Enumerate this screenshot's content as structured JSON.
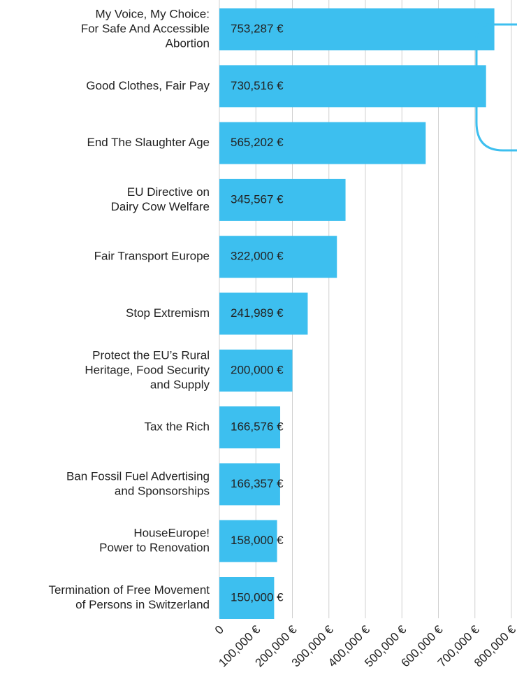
{
  "chart_data": {
    "type": "bar",
    "orientation": "horizontal",
    "color": "#3dbfef",
    "grid": true,
    "categories": [
      [
        "My Voice, My Choice:",
        "For Safe And Accessible",
        "Abortion"
      ],
      [
        "Good Clothes, Fair Pay"
      ],
      [
        "End The Slaughter Age"
      ],
      [
        "EU Directive on",
        "Dairy Cow Welfare"
      ],
      [
        "Fair Transport Europe"
      ],
      [
        "Stop Extremism"
      ],
      [
        "Protect the EU’s Rural",
        "Heritage, Food Security",
        "and Supply"
      ],
      [
        "Tax the Rich"
      ],
      [
        "Ban Fossil Fuel Advertising",
        "and Sponsorships"
      ],
      [
        "HouseEurope!",
        "Power to Renovation"
      ],
      [
        "Termination of Free Movement",
        "of Persons in Switzerland"
      ]
    ],
    "values": [
      753287,
      730516,
      565202,
      345567,
      322000,
      241989,
      200000,
      166576,
      166357,
      158000,
      150000
    ],
    "value_labels": [
      "753,287 €",
      "730,516 €",
      "565,202 €",
      "345,567 €",
      "322,000 €",
      "241,989 €",
      "200,000 €",
      "166,576 €",
      "166,357 €",
      "158,000 €",
      "150,000 €"
    ],
    "xlim": [
      0,
      800000
    ],
    "xticks": [
      0,
      {
        "value": 100000,
        "label": "100,000 €"
      },
      {
        "value": 200000,
        "label": "200,000 €"
      },
      {
        "value": 300000,
        "label": "300,000 €"
      },
      {
        "value": 400000,
        "label": "400,000 €"
      },
      {
        "value": 500000,
        "label": "500,000 €"
      },
      {
        "value": 600000,
        "label": "600,000 €"
      },
      {
        "value": 700000,
        "label": "700,000 €"
      },
      {
        "value": 800000,
        "label": "800,000 €"
      }
    ]
  }
}
